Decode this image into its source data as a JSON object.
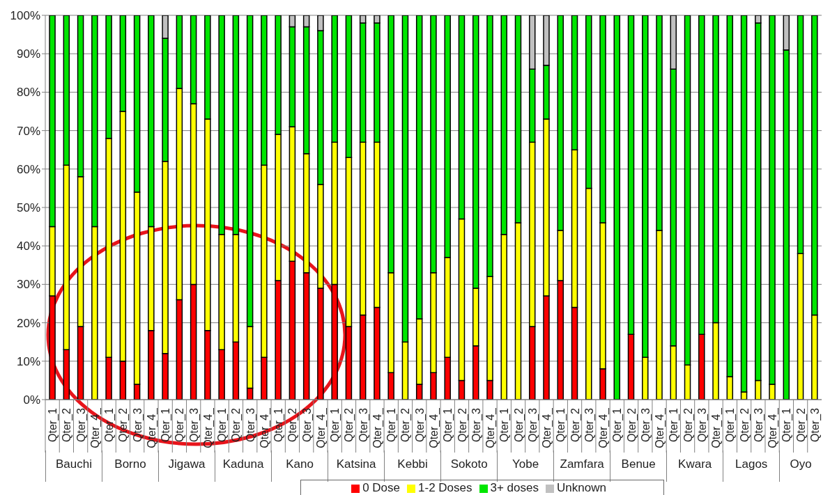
{
  "chart_data": {
    "type": "bar",
    "stacked": true,
    "categories": [
      "Qter_1",
      "Qter_2",
      "Qter_3",
      "Qter_4_",
      "Qter_1",
      "Qter_2",
      "Qter_3",
      "Qter_4_",
      "Qter_1",
      "Qter_2",
      "Qter_3",
      "Qter_4_",
      "Qter_1",
      "Qter_2",
      "Qter_3",
      "Qter_4_",
      "Qter_1",
      "Qter_2",
      "Qter_3",
      "Qter_4_",
      "Qter_1",
      "Qter_2",
      "Qter_3",
      "Qter_4_",
      "Qter_1",
      "Qter_2",
      "Qter_3",
      "Qter_4_",
      "Qter_1",
      "Qter_2",
      "Qter_3",
      "Qter_4_",
      "Qter_1",
      "Qter_2",
      "Qter_3",
      "Qter_4_",
      "Qter_1",
      "Qter_2",
      "Qter_3",
      "Qter_4_",
      "Qter_1",
      "Qter_2",
      "Qter_3",
      "Qter_4_",
      "Qter_1",
      "Qter_2",
      "Qter_3",
      "Qter_4_",
      "Qter_1",
      "Qter_2",
      "Qter_3",
      "Qter_4_",
      "Qter_1",
      "Qter_2",
      "Qter_3"
    ],
    "annotations": [
      "Bauchi",
      "Borno",
      "Jigawa",
      "Kaduna",
      "Kano",
      "Katsina",
      "Kebbi",
      "Sokoto",
      "Yobe",
      "Zamfara",
      "Benue",
      "Kwara",
      "Lagos",
      "Oyo"
    ],
    "series": [
      {
        "name": "0 Dose",
        "color": "#ff0000",
        "values": [
          27,
          13,
          19,
          0,
          11,
          10,
          4,
          18,
          12,
          26,
          30,
          18,
          13,
          15,
          3,
          11,
          31,
          36,
          33,
          29,
          30,
          19,
          22,
          24,
          7,
          0,
          4,
          7,
          11,
          5,
          14,
          5,
          0,
          0,
          19,
          27,
          31,
          24,
          0,
          8,
          0,
          17,
          0,
          0,
          0,
          0,
          17,
          0,
          0,
          0,
          0,
          0,
          0,
          0,
          0
        ]
      },
      {
        "name": "1-2 Doses",
        "color": "#ffff00",
        "values": [
          18,
          48,
          39,
          45,
          57,
          65,
          50,
          27,
          50,
          55,
          47,
          55,
          30,
          28,
          16,
          50,
          38,
          35,
          31,
          27,
          37,
          44,
          45,
          43,
          26,
          15,
          17,
          26,
          26,
          42,
          15,
          27,
          43,
          46,
          48,
          46,
          13,
          41,
          55,
          38,
          0,
          0,
          11,
          44,
          14,
          9,
          0,
          20,
          6,
          2,
          5,
          4,
          0,
          38,
          22
        ]
      },
      {
        "name": "3+ doses",
        "color": "#00e600",
        "values": [
          55,
          39,
          42,
          55,
          32,
          25,
          46,
          55,
          32,
          19,
          23,
          27,
          57,
          57,
          81,
          39,
          31,
          26,
          33,
          40,
          33,
          37,
          31,
          31,
          67,
          85,
          79,
          67,
          63,
          53,
          71,
          68,
          57,
          54,
          19,
          14,
          56,
          35,
          45,
          54,
          100,
          83,
          89,
          56,
          72,
          91,
          83,
          80,
          94,
          98,
          93,
          96,
          91,
          62,
          78
        ]
      },
      {
        "name": "Unknown",
        "color": "#c0c0c0",
        "values": [
          0,
          0,
          0,
          0,
          0,
          0,
          0,
          0,
          6,
          0,
          0,
          0,
          0,
          0,
          0,
          0,
          0,
          3,
          3,
          4,
          0,
          0,
          2,
          2,
          0,
          0,
          0,
          0,
          0,
          0,
          0,
          0,
          0,
          0,
          14,
          13,
          0,
          0,
          0,
          0,
          0,
          0,
          0,
          0,
          14,
          0,
          0,
          0,
          0,
          0,
          2,
          0,
          9,
          0,
          0
        ]
      }
    ],
    "ylim": [
      0,
      100
    ],
    "yticks": [
      {
        "value": 0,
        "label": "0%"
      },
      {
        "value": 10,
        "label": "10%"
      },
      {
        "value": 20,
        "label": "20%"
      },
      {
        "value": 30,
        "label": "30%"
      },
      {
        "value": 40,
        "label": "40%"
      },
      {
        "value": 50,
        "label": "50%"
      },
      {
        "value": 60,
        "label": "60%"
      },
      {
        "value": 70,
        "label": "70%"
      },
      {
        "value": 80,
        "label": "80%"
      },
      {
        "value": 90,
        "label": "90%"
      },
      {
        "value": 100,
        "label": "100%"
      }
    ],
    "grid": "y",
    "legend": "bottom"
  }
}
